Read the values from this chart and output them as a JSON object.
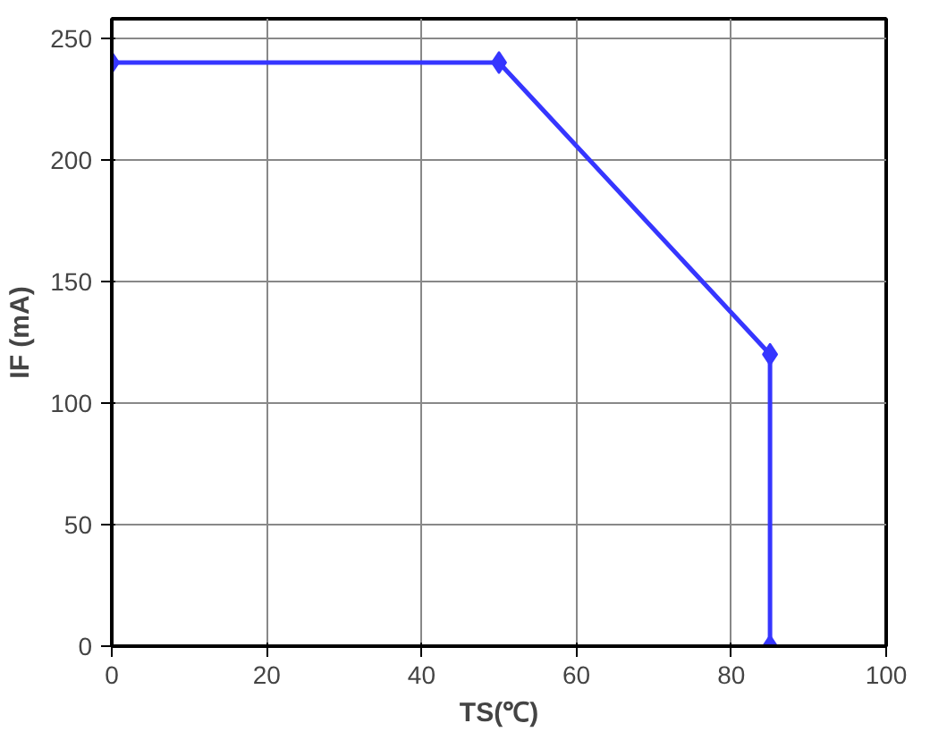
{
  "chart_data": {
    "type": "line",
    "xlabel": "TS(℃)",
    "ylabel": "IF (mA)",
    "x": [
      0,
      50,
      85,
      85
    ],
    "series": [
      {
        "color": "#3636ff",
        "values": [
          240,
          240,
          120,
          0
        ]
      }
    ],
    "xlim": [
      0,
      100
    ],
    "xticks": [
      0,
      20,
      40,
      60,
      80,
      100
    ],
    "ylim": [
      0,
      258
    ],
    "yticks": [
      0,
      50,
      100,
      150,
      200,
      250
    ],
    "grid": true,
    "marker": "diamond",
    "line_style": "solid"
  }
}
